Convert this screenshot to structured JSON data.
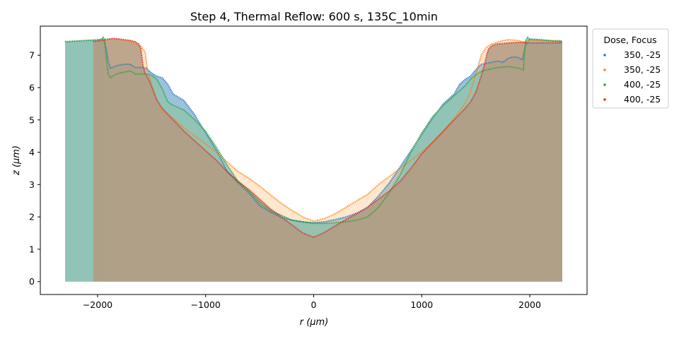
{
  "chart_data": {
    "type": "area",
    "title": "Step 4, Thermal Reflow: 600 s, 135C_10min",
    "xlabel": "r (μm)",
    "ylabel": "z (μm)",
    "xlim": [
      -2530,
      2530
    ],
    "ylim": [
      -0.4,
      7.9
    ],
    "xticks": [
      -2000,
      -1000,
      0,
      1000,
      2000
    ],
    "xtick_labels": [
      "−2000",
      "−1000",
      "0",
      "1000",
      "2000"
    ],
    "yticks": [
      0,
      1,
      2,
      3,
      4,
      5,
      6,
      7
    ],
    "ytick_labels": [
      "0",
      "1",
      "2",
      "3",
      "4",
      "5",
      "6",
      "7"
    ],
    "grid": false,
    "legend": {
      "title": "Dose, Focus",
      "placement": "outside-right"
    },
    "series": [
      {
        "name": "350, -25",
        "color": "#1f77b4",
        "fill_color": "#1f77b4",
        "points": [
          [
            -2300,
            7.42
          ],
          [
            -2200,
            7.44
          ],
          [
            -2100,
            7.46
          ],
          [
            -2000,
            7.48
          ],
          [
            -1960,
            7.5
          ],
          [
            -1940,
            7.45
          ],
          [
            -1920,
            7.2
          ],
          [
            -1900,
            6.8
          ],
          [
            -1880,
            6.6
          ],
          [
            -1820,
            6.68
          ],
          [
            -1750,
            6.72
          ],
          [
            -1700,
            6.72
          ],
          [
            -1650,
            6.62
          ],
          [
            -1600,
            6.62
          ],
          [
            -1550,
            6.6
          ],
          [
            -1500,
            6.45
          ],
          [
            -1450,
            6.35
          ],
          [
            -1400,
            6.3
          ],
          [
            -1350,
            6.1
          ],
          [
            -1300,
            5.8
          ],
          [
            -1200,
            5.6
          ],
          [
            -1100,
            5.15
          ],
          [
            -1000,
            4.6
          ],
          [
            -900,
            4.05
          ],
          [
            -800,
            3.4
          ],
          [
            -700,
            3.05
          ],
          [
            -600,
            2.75
          ],
          [
            -500,
            2.35
          ],
          [
            -400,
            2.15
          ],
          [
            -300,
            1.98
          ],
          [
            -200,
            1.9
          ],
          [
            -100,
            1.84
          ],
          [
            0,
            1.82
          ],
          [
            100,
            1.85
          ],
          [
            200,
            1.92
          ],
          [
            300,
            2.0
          ],
          [
            400,
            2.12
          ],
          [
            500,
            2.3
          ],
          [
            600,
            2.65
          ],
          [
            700,
            3.05
          ],
          [
            800,
            3.55
          ],
          [
            900,
            4.05
          ],
          [
            1000,
            4.55
          ],
          [
            1100,
            5.05
          ],
          [
            1200,
            5.5
          ],
          [
            1300,
            5.8
          ],
          [
            1350,
            6.1
          ],
          [
            1400,
            6.25
          ],
          [
            1450,
            6.35
          ],
          [
            1500,
            6.55
          ],
          [
            1550,
            6.72
          ],
          [
            1600,
            6.75
          ],
          [
            1650,
            6.78
          ],
          [
            1700,
            6.82
          ],
          [
            1750,
            6.78
          ],
          [
            1800,
            6.9
          ],
          [
            1850,
            6.95
          ],
          [
            1900,
            6.92
          ],
          [
            1930,
            6.85
          ],
          [
            1960,
            7.3
          ],
          [
            2000,
            7.5
          ],
          [
            2100,
            7.48
          ],
          [
            2200,
            7.45
          ],
          [
            2300,
            7.42
          ]
        ]
      },
      {
        "name": "350, -25",
        "color": "#ff7f0e",
        "fill_color": "#ffbb78",
        "points": [
          [
            -1960,
            7.46
          ],
          [
            -1900,
            7.5
          ],
          [
            -1850,
            7.52
          ],
          [
            -1800,
            7.5
          ],
          [
            -1750,
            7.46
          ],
          [
            -1700,
            7.42
          ],
          [
            -1650,
            7.35
          ],
          [
            -1600,
            7.28
          ],
          [
            -1560,
            7.1
          ],
          [
            -1540,
            6.6
          ],
          [
            -1500,
            6.1
          ],
          [
            -1450,
            5.6
          ],
          [
            -1400,
            5.3
          ],
          [
            -1300,
            5.05
          ],
          [
            -1200,
            4.75
          ],
          [
            -1100,
            4.5
          ],
          [
            -1000,
            4.25
          ],
          [
            -900,
            4.0
          ],
          [
            -800,
            3.7
          ],
          [
            -700,
            3.4
          ],
          [
            -600,
            3.2
          ],
          [
            -500,
            2.95
          ],
          [
            -400,
            2.68
          ],
          [
            -300,
            2.42
          ],
          [
            -200,
            2.2
          ],
          [
            -100,
            2.0
          ],
          [
            0,
            1.87
          ],
          [
            100,
            1.95
          ],
          [
            200,
            2.1
          ],
          [
            300,
            2.3
          ],
          [
            400,
            2.5
          ],
          [
            500,
            2.7
          ],
          [
            600,
            3.0
          ],
          [
            700,
            3.25
          ],
          [
            800,
            3.5
          ],
          [
            900,
            3.75
          ],
          [
            1000,
            4.0
          ],
          [
            1100,
            4.3
          ],
          [
            1200,
            4.65
          ],
          [
            1300,
            5.05
          ],
          [
            1400,
            5.5
          ],
          [
            1450,
            5.85
          ],
          [
            1500,
            6.4
          ],
          [
            1550,
            7.0
          ],
          [
            1600,
            7.25
          ],
          [
            1650,
            7.35
          ],
          [
            1700,
            7.4
          ],
          [
            1750,
            7.45
          ],
          [
            1800,
            7.48
          ],
          [
            1850,
            7.47
          ],
          [
            1900,
            7.45
          ],
          [
            1950,
            7.4
          ],
          [
            2000,
            7.46
          ],
          [
            2100,
            7.45
          ],
          [
            2200,
            7.44
          ],
          [
            2300,
            7.42
          ]
        ]
      },
      {
        "name": "400, -25",
        "color": "#2ca02c",
        "fill_color": "#8fc3ae",
        "points": [
          [
            -2300,
            7.42
          ],
          [
            -2200,
            7.44
          ],
          [
            -2100,
            7.46
          ],
          [
            -2000,
            7.46
          ],
          [
            -1960,
            7.5
          ],
          [
            -1950,
            7.55
          ],
          [
            -1935,
            7.5
          ],
          [
            -1920,
            6.9
          ],
          [
            -1900,
            6.4
          ],
          [
            -1880,
            6.3
          ],
          [
            -1850,
            6.38
          ],
          [
            -1800,
            6.45
          ],
          [
            -1750,
            6.48
          ],
          [
            -1700,
            6.52
          ],
          [
            -1650,
            6.42
          ],
          [
            -1600,
            6.42
          ],
          [
            -1550,
            6.42
          ],
          [
            -1500,
            6.38
          ],
          [
            -1450,
            6.25
          ],
          [
            -1400,
            5.95
          ],
          [
            -1350,
            5.55
          ],
          [
            -1300,
            5.45
          ],
          [
            -1200,
            5.3
          ],
          [
            -1100,
            5.0
          ],
          [
            -1000,
            4.65
          ],
          [
            -900,
            4.15
          ],
          [
            -800,
            3.6
          ],
          [
            -700,
            3.1
          ],
          [
            -600,
            2.8
          ],
          [
            -500,
            2.45
          ],
          [
            -400,
            2.2
          ],
          [
            -300,
            2.05
          ],
          [
            -200,
            1.9
          ],
          [
            -100,
            1.85
          ],
          [
            0,
            1.8
          ],
          [
            100,
            1.8
          ],
          [
            200,
            1.82
          ],
          [
            300,
            1.85
          ],
          [
            400,
            1.9
          ],
          [
            500,
            2.0
          ],
          [
            600,
            2.3
          ],
          [
            700,
            2.75
          ],
          [
            800,
            3.3
          ],
          [
            900,
            4.0
          ],
          [
            1000,
            4.6
          ],
          [
            1100,
            5.1
          ],
          [
            1200,
            5.45
          ],
          [
            1300,
            5.75
          ],
          [
            1350,
            5.9
          ],
          [
            1400,
            6.05
          ],
          [
            1450,
            6.25
          ],
          [
            1500,
            6.4
          ],
          [
            1550,
            6.5
          ],
          [
            1600,
            6.55
          ],
          [
            1700,
            6.62
          ],
          [
            1800,
            6.65
          ],
          [
            1900,
            6.6
          ],
          [
            1940,
            6.55
          ],
          [
            1960,
            7.45
          ],
          [
            1980,
            7.55
          ],
          [
            2000,
            7.5
          ],
          [
            2100,
            7.48
          ],
          [
            2200,
            7.45
          ],
          [
            2300,
            7.45
          ]
        ]
      },
      {
        "name": "400, -25",
        "color": "#d62728",
        "fill_color": "#b39a80",
        "points": [
          [
            -2040,
            7.42
          ],
          [
            -2000,
            7.44
          ],
          [
            -1950,
            7.46
          ],
          [
            -1900,
            7.5
          ],
          [
            -1850,
            7.52
          ],
          [
            -1800,
            7.5
          ],
          [
            -1750,
            7.48
          ],
          [
            -1700,
            7.46
          ],
          [
            -1650,
            7.42
          ],
          [
            -1620,
            7.35
          ],
          [
            -1600,
            7.2
          ],
          [
            -1580,
            6.7
          ],
          [
            -1560,
            6.45
          ],
          [
            -1520,
            6.2
          ],
          [
            -1450,
            5.6
          ],
          [
            -1400,
            5.35
          ],
          [
            -1300,
            5.0
          ],
          [
            -1200,
            4.65
          ],
          [
            -1100,
            4.35
          ],
          [
            -1000,
            4.05
          ],
          [
            -900,
            3.75
          ],
          [
            -800,
            3.4
          ],
          [
            -700,
            3.1
          ],
          [
            -600,
            2.85
          ],
          [
            -500,
            2.55
          ],
          [
            -400,
            2.25
          ],
          [
            -300,
            2.0
          ],
          [
            -200,
            1.75
          ],
          [
            -100,
            1.5
          ],
          [
            0,
            1.37
          ],
          [
            100,
            1.52
          ],
          [
            200,
            1.72
          ],
          [
            300,
            1.92
          ],
          [
            400,
            2.1
          ],
          [
            500,
            2.3
          ],
          [
            600,
            2.55
          ],
          [
            700,
            2.8
          ],
          [
            800,
            3.1
          ],
          [
            900,
            3.5
          ],
          [
            1000,
            3.95
          ],
          [
            1100,
            4.3
          ],
          [
            1200,
            4.65
          ],
          [
            1300,
            5.0
          ],
          [
            1400,
            5.35
          ],
          [
            1450,
            5.55
          ],
          [
            1500,
            5.85
          ],
          [
            1550,
            6.35
          ],
          [
            1580,
            6.7
          ],
          [
            1600,
            7.0
          ],
          [
            1620,
            7.2
          ],
          [
            1650,
            7.3
          ],
          [
            1700,
            7.35
          ],
          [
            1800,
            7.38
          ],
          [
            1900,
            7.4
          ],
          [
            2000,
            7.38
          ],
          [
            2100,
            7.38
          ],
          [
            2200,
            7.38
          ],
          [
            2300,
            7.38
          ]
        ]
      }
    ]
  }
}
